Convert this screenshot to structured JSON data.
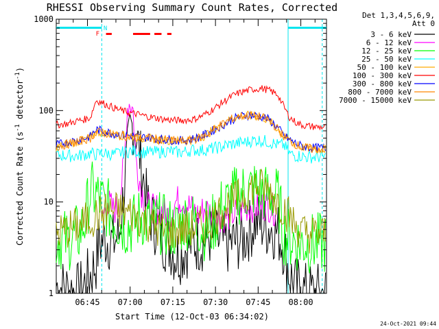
{
  "chart_data": {
    "type": "line",
    "title": "RHESSI Observing Summary Count Rates, Corrected",
    "xlabel": "Start Time (12-Oct-03 06:34:02)",
    "ylabel": "Corrected Count Rate (s",
    "ylabel_sup1": "-1",
    "ylabel_mid": " detector",
    "ylabel_sup2": "-1",
    "ylabel_end": ")",
    "x_unit": "minutes since start",
    "xlim": [
      0,
      95
    ],
    "ylim": [
      1,
      1000
    ],
    "yscale": "log",
    "x_ticks": [
      {
        "label": "06:45",
        "value": 10.97
      },
      {
        "label": "07:00",
        "value": 25.97
      },
      {
        "label": "07:15",
        "value": 40.97
      },
      {
        "label": "07:30",
        "value": 55.97
      },
      {
        "label": "07:45",
        "value": 70.97
      },
      {
        "label": "08:00",
        "value": 85.97
      }
    ],
    "y_ticks": [
      {
        "label": "1",
        "value": 1
      },
      {
        "label": "10",
        "value": 10
      },
      {
        "label": "100",
        "value": 100
      },
      {
        "label": "1000",
        "value": 1000
      }
    ],
    "legend": {
      "header1": "Det 1,3,4,5,6,9,",
      "header2": "Att 0",
      "placement": "right"
    },
    "series": [
      {
        "name": "3 - 6 keV",
        "color": "#000000",
        "x": [
          0,
          4,
          8,
          12,
          14,
          15,
          17,
          20,
          22,
          24,
          26,
          27,
          28,
          30,
          32,
          34,
          36,
          38,
          40,
          42,
          44,
          46,
          48,
          50,
          52,
          54,
          56,
          58,
          60,
          62,
          64,
          66,
          68,
          70,
          72,
          74,
          76,
          78,
          80,
          82,
          84,
          86,
          88,
          90,
          92,
          95
        ],
        "y": [
          1.2,
          1.1,
          1.0,
          1.6,
          2.2,
          3.5,
          4.0,
          3.6,
          4.2,
          15,
          60,
          70,
          60,
          25,
          9,
          6,
          5,
          3.8,
          3.4,
          2.6,
          2.8,
          3.2,
          3.7,
          3.6,
          3.8,
          4.2,
          3.9,
          3.5,
          3.4,
          3.6,
          3.8,
          4.0,
          5,
          6,
          5.8,
          5.3,
          5.2,
          4.6,
          3.2,
          1.6,
          1.2,
          1.1,
          1.0,
          1.0,
          1.0,
          1.0
        ]
      },
      {
        "name": "6 - 12 keV",
        "color": "#ff00ff",
        "x": [
          0,
          4,
          8,
          12,
          14,
          16,
          18,
          20,
          22,
          24,
          25,
          26,
          27,
          28,
          30,
          32,
          34,
          36,
          38,
          40,
          42,
          44,
          46,
          48,
          50,
          52,
          54,
          56,
          58,
          60,
          62,
          64,
          66,
          68,
          70,
          72,
          74,
          76,
          78,
          80
        ],
        "y": [
          null,
          null,
          null,
          null,
          null,
          6.5,
          10,
          8.2,
          8.6,
          30,
          110,
          125,
          100,
          30,
          13,
          9,
          8.2,
          8.5,
          7.6,
          7.0,
          10,
          11,
          9.5,
          8.2,
          7.1,
          8.5,
          7.8,
          7.3,
          6.8,
          6.9,
          7.3,
          7.8,
          8.5,
          9.0,
          8.8,
          9.0,
          9.5,
          8.4,
          7.7,
          null
        ]
      },
      {
        "name": "12 - 25 keV",
        "color": "#00ff00",
        "x": [
          0,
          4,
          8,
          10,
          12,
          14,
          16,
          18,
          20,
          22,
          24,
          26,
          28,
          30,
          32,
          34,
          36,
          38,
          40,
          42,
          44,
          46,
          48,
          50,
          52,
          54,
          56,
          58,
          60,
          62,
          64,
          66,
          68,
          70,
          72,
          74,
          76,
          78,
          80,
          82,
          84,
          86,
          88,
          90,
          92,
          95
        ],
        "y": [
          4.0,
          3.8,
          4.5,
          6.0,
          13,
          12,
          10,
          8.5,
          7.0,
          6.0,
          5.5,
          5.5,
          6.0,
          7.0,
          6.0,
          5.5,
          6.0,
          5.5,
          5.2,
          5.0,
          5.8,
          6.5,
          6.0,
          5.5,
          5.0,
          5.0,
          6.5,
          8.5,
          9.5,
          11,
          12,
          13,
          13.5,
          14,
          13,
          12,
          12,
          11,
          4.5,
          4.0,
          3.8,
          3.5,
          3.6,
          3.5,
          3.5,
          3.5
        ]
      },
      {
        "name": "25 - 50 keV",
        "color": "#00ffff",
        "x": [
          0,
          4,
          8,
          10,
          12,
          14,
          16,
          18,
          20,
          22,
          24,
          26,
          28,
          30,
          32,
          34,
          36,
          38,
          40,
          42,
          44,
          46,
          48,
          50,
          52,
          54,
          56,
          58,
          60,
          62,
          64,
          66,
          68,
          70,
          72,
          74,
          76,
          78,
          80,
          82,
          84,
          86,
          88,
          90,
          92,
          95
        ],
        "y": [
          33,
          32,
          32,
          33,
          34,
          33,
          34,
          34,
          33,
          34,
          35,
          36,
          36,
          35,
          35,
          35,
          35,
          36,
          36,
          35,
          35,
          36,
          37,
          37,
          37,
          38,
          39,
          40,
          42,
          43,
          44,
          45,
          46,
          48,
          47,
          46,
          44,
          42,
          42,
          34,
          32,
          32,
          31,
          31,
          31,
          31
        ]
      },
      {
        "name": "50 - 100 keV",
        "color": "#ffaa00",
        "x": [
          0,
          4,
          8,
          10,
          12,
          14,
          16,
          18,
          20,
          22,
          24,
          26,
          28,
          30,
          32,
          34,
          36,
          38,
          40,
          42,
          44,
          46,
          48,
          50,
          52,
          54,
          56,
          58,
          60,
          62,
          64,
          66,
          68,
          70,
          72,
          74,
          76,
          78,
          80,
          82,
          84,
          86,
          88,
          90,
          92,
          95
        ],
        "y": [
          40,
          43,
          46,
          48,
          50,
          58,
          58,
          56,
          55,
          54,
          53,
          52,
          51,
          50,
          50,
          49,
          48,
          48,
          47,
          47,
          46,
          47,
          48,
          50,
          53,
          58,
          64,
          70,
          76,
          82,
          86,
          88,
          88,
          87,
          85,
          80,
          72,
          62,
          52,
          47,
          43,
          40,
          39,
          38,
          38,
          38
        ]
      },
      {
        "name": "100 - 300 keV",
        "color": "#ff0000",
        "x": [
          0,
          4,
          8,
          10,
          12,
          14,
          16,
          18,
          20,
          22,
          24,
          26,
          28,
          30,
          32,
          34,
          36,
          38,
          40,
          42,
          44,
          46,
          48,
          50,
          52,
          54,
          56,
          58,
          60,
          62,
          64,
          66,
          68,
          70,
          72,
          74,
          76,
          78,
          80,
          82,
          84,
          86,
          88,
          90,
          92,
          95
        ],
        "y": [
          70,
          72,
          78,
          80,
          84,
          130,
          122,
          115,
          108,
          102,
          98,
          94,
          92,
          89,
          86,
          84,
          82,
          80,
          79,
          78,
          78,
          79,
          80,
          84,
          90,
          98,
          108,
          120,
          132,
          145,
          155,
          162,
          168,
          172,
          175,
          170,
          160,
          148,
          110,
          85,
          75,
          70,
          68,
          67,
          66,
          66
        ]
      },
      {
        "name": "300 - 800 keV",
        "color": "#0000ff",
        "x": [
          0,
          4,
          8,
          10,
          12,
          14,
          16,
          18,
          20,
          22,
          24,
          26,
          28,
          30,
          32,
          34,
          36,
          38,
          40,
          42,
          44,
          46,
          48,
          50,
          52,
          54,
          56,
          58,
          60,
          62,
          64,
          66,
          68,
          70,
          72,
          74,
          76,
          78,
          80,
          82,
          84,
          86,
          88,
          90,
          92,
          95
        ],
        "y": [
          42,
          45,
          48,
          50,
          52,
          62,
          60,
          58,
          56,
          55,
          54,
          53,
          52,
          51,
          51,
          50,
          49,
          48,
          48,
          47,
          47,
          48,
          49,
          51,
          54,
          58,
          63,
          68,
          74,
          80,
          85,
          88,
          89,
          88,
          86,
          82,
          74,
          64,
          53,
          48,
          44,
          41,
          40,
          39,
          39,
          39
        ]
      },
      {
        "name": "800 - 7000 keV",
        "color": "#ff8800",
        "x": [
          0,
          4,
          8,
          10,
          12,
          14,
          16,
          18,
          20,
          22,
          24,
          26,
          28,
          30,
          32,
          34,
          36,
          38,
          40,
          42,
          44,
          46,
          48,
          50,
          52,
          54,
          56,
          58,
          60,
          62,
          64,
          66,
          68,
          70,
          72,
          74,
          76,
          78,
          80,
          82,
          84,
          86,
          88,
          90,
          92,
          95
        ],
        "y": [
          40,
          43,
          46,
          48,
          50,
          58,
          58,
          56,
          55,
          54,
          53,
          52,
          51,
          50,
          50,
          49,
          48,
          48,
          47,
          47,
          46,
          47,
          48,
          50,
          53,
          58,
          64,
          70,
          76,
          82,
          86,
          88,
          88,
          87,
          85,
          80,
          72,
          62,
          52,
          47,
          43,
          40,
          39,
          38,
          38,
          38
        ]
      },
      {
        "name": "7000 - 15000 keV",
        "color": "#999900",
        "x": [
          0,
          4,
          8,
          10,
          12,
          14,
          16,
          18,
          20,
          22,
          24,
          26,
          28,
          30,
          32,
          34,
          36,
          38,
          40,
          42,
          44,
          46,
          48,
          50,
          52,
          54,
          56,
          58,
          60,
          62,
          64,
          66,
          68,
          70,
          72,
          74,
          76,
          78,
          80,
          82,
          84,
          86,
          88,
          90,
          92,
          95
        ],
        "y": [
          4.5,
          5.0,
          5.5,
          6.0,
          6.5,
          7.0,
          7.5,
          8.0,
          8.0,
          8.0,
          7.8,
          7.5,
          7.0,
          6.5,
          6.0,
          5.5,
          5.0,
          4.8,
          4.5,
          4.8,
          5.0,
          5.0,
          5.2,
          5.5,
          5.5,
          6.0,
          7.0,
          8.0,
          9.0,
          10,
          11,
          12,
          14,
          15,
          14.5,
          13.5,
          12,
          10,
          8.5,
          7.0,
          5.5,
          4.8,
          4.5,
          4.5,
          4.5,
          4.5
        ]
      }
    ],
    "annotations": {
      "flag_F": "F",
      "flag_N": "N",
      "attenuator_bars": [
        {
          "x0": 0,
          "x1": 16
        },
        {
          "x0": 81.5,
          "x1": 95
        }
      ],
      "flare_bars": [
        {
          "x0": 17.5,
          "x1": 19.5
        },
        {
          "x0": 27,
          "x1": 33
        },
        {
          "x0": 34.5,
          "x1": 37
        },
        {
          "x0": 39,
          "x1": 40.5
        }
      ],
      "vertical_markers": [
        16,
        81.5,
        93.5
      ],
      "solid_markers": [
        81.5
      ]
    },
    "grid": false
  },
  "timestamp": "24-Oct-2021 09:44"
}
